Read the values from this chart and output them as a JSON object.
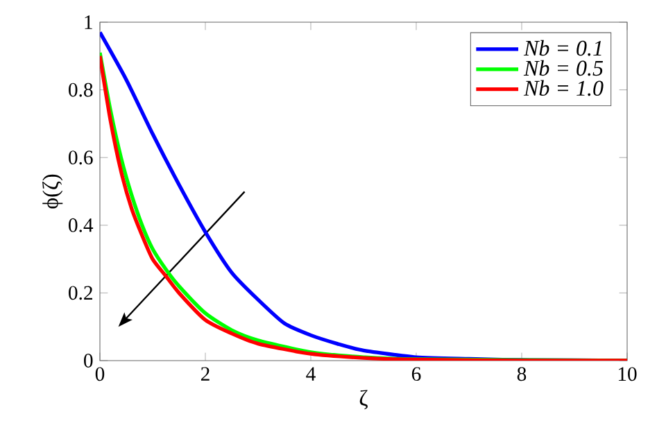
{
  "chart_data": {
    "type": "line",
    "xlabel": "ζ",
    "ylabel": "ϕ(ζ)",
    "xlim": [
      0,
      10
    ],
    "ylim": [
      0,
      1
    ],
    "xticks": [
      0,
      2,
      4,
      6,
      8,
      10
    ],
    "yticks": [
      0,
      0.2,
      0.4,
      0.6,
      0.8,
      1
    ],
    "legend": "top right",
    "grid": false,
    "marker": "none",
    "line_style": "solid",
    "series": [
      {
        "name": "*Nb = 0.1*",
        "color": "#0000ff",
        "x": [
          0,
          0.5,
          1,
          1.5,
          2,
          2.5,
          3,
          3.5,
          4,
          4.5,
          5,
          6,
          7,
          8,
          9,
          10
        ],
        "values": [
          0.97,
          0.83,
          0.67,
          0.52,
          0.38,
          0.26,
          0.18,
          0.11,
          0.075,
          0.05,
          0.03,
          0.01,
          0.005,
          0.002,
          null,
          0
        ]
      },
      {
        "name": "*Nb = 0.5*",
        "color": "#00ff00",
        "x": [
          0,
          0.2,
          0.4,
          0.6,
          0.8,
          1,
          1.25,
          1.5,
          2,
          2.5,
          3,
          4,
          5,
          6,
          8,
          10
        ],
        "values": [
          0.91,
          0.74,
          0.6,
          0.49,
          0.4,
          0.33,
          0.27,
          0.22,
          0.14,
          0.09,
          0.06,
          0.025,
          0.01,
          0.004,
          null,
          0
        ]
      },
      {
        "name": "*Nb = 1.0*",
        "color": "#ff0000",
        "x": [
          0,
          0.2,
          0.4,
          0.6,
          0.8,
          1,
          1.25,
          1.5,
          2,
          2.5,
          3,
          4,
          5,
          6,
          8,
          10
        ],
        "values": [
          0.9,
          0.71,
          0.56,
          0.45,
          0.37,
          0.3,
          0.25,
          0.2,
          0.12,
          0.08,
          0.05,
          0.02,
          0.008,
          0.003,
          0,
          0
        ]
      }
    ]
  }
}
